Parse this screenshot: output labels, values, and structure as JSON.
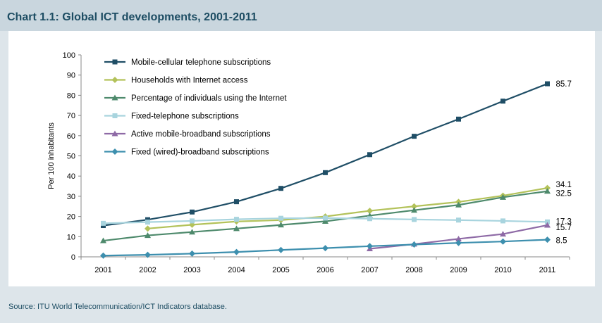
{
  "title": "Chart 1.1: Global ICT developments, 2001-2011",
  "source": "Source:  ITU World Telecommunication/ICT Indicators database.",
  "chart_data": {
    "type": "line",
    "title": "Chart 1.1: Global ICT developments, 2001-2011",
    "xlabel": "",
    "ylabel": "Per 100 inhabitants",
    "ylim": [
      0,
      100
    ],
    "yticks": [
      0,
      10,
      20,
      30,
      40,
      50,
      60,
      70,
      80,
      90,
      100
    ],
    "x": [
      2001,
      2002,
      2003,
      2004,
      2005,
      2006,
      2007,
      2008,
      2009,
      2010,
      2011
    ],
    "grid": false,
    "legend_position": "top-left",
    "series": [
      {
        "name": "Mobile-cellular telephone subscriptions",
        "color": "#1f4e66",
        "marker": "square",
        "values": [
          15.5,
          18.4,
          22.2,
          27.3,
          33.9,
          41.7,
          50.6,
          59.7,
          68.2,
          77.1,
          85.7
        ],
        "end_label": "85.7"
      },
      {
        "name": "Households with Internet access",
        "color": "#b3c25a",
        "marker": "diamond",
        "values": [
          null,
          14.0,
          15.9,
          17.5,
          18.2,
          20.0,
          22.8,
          25.0,
          27.2,
          30.3,
          34.1
        ],
        "end_label": "34.1"
      },
      {
        "name": "Percentage of individuals using the Internet",
        "color": "#4e8a6c",
        "marker": "triangle",
        "values": [
          8.0,
          10.6,
          12.3,
          14.0,
          15.8,
          17.6,
          20.4,
          23.1,
          25.7,
          29.5,
          32.5
        ],
        "end_label": "32.5"
      },
      {
        "name": "Fixed-telephone subscriptions",
        "color": "#a8d4de",
        "marker": "square",
        "values": [
          16.6,
          17.2,
          17.8,
          18.6,
          19.1,
          19.2,
          18.9,
          18.5,
          18.2,
          17.8,
          17.3
        ],
        "end_label": "17.3"
      },
      {
        "name": "Active mobile-broadband subscriptions",
        "color": "#8e6aa6",
        "marker": "triangle",
        "values": [
          null,
          null,
          null,
          null,
          null,
          null,
          4.0,
          6.3,
          8.9,
          11.3,
          15.7
        ],
        "end_label": "15.7"
      },
      {
        "name": "Fixed (wired)-broadband subscriptions",
        "color": "#3d8fae",
        "marker": "diamond",
        "values": [
          0.6,
          1.0,
          1.6,
          2.4,
          3.4,
          4.3,
          5.3,
          6.1,
          6.9,
          7.6,
          8.5
        ],
        "end_label": "8.5"
      }
    ]
  }
}
